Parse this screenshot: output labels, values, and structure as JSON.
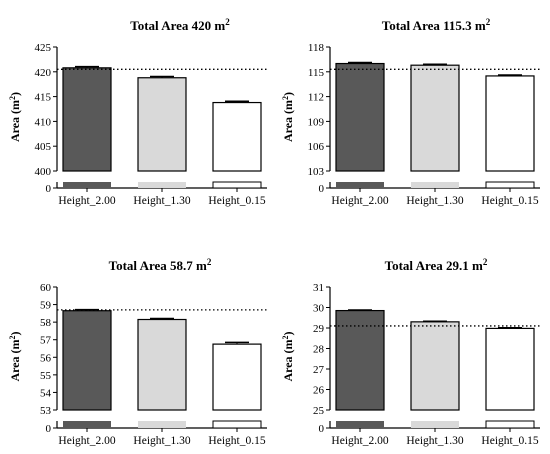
{
  "chart_data": [
    {
      "type": "bar",
      "title_main": "Total Area 420 m",
      "title_sup": "2",
      "ylabel_main": "Area (m",
      "ylabel_sup": "2",
      "ylabel_end": ")",
      "categories": [
        "Height_2.00",
        "Height_1.30",
        "Height_0.15"
      ],
      "values": [
        420.8,
        418.8,
        413.8
      ],
      "errors": [
        0.25,
        0.25,
        0.25
      ],
      "ylim": [
        400,
        425
      ],
      "yticks": [
        400,
        405,
        410,
        415,
        420,
        425
      ],
      "axis_break_tick": 0,
      "reference_line": 420.5,
      "bar_colors": [
        "#595959",
        "#d9d9d9",
        "#ffffff"
      ]
    },
    {
      "type": "bar",
      "title_main": "Total Area 115.3 m",
      "title_sup": "2",
      "ylabel_main": "Area (m",
      "ylabel_sup": "2",
      "ylabel_end": ")",
      "categories": [
        "Height_2.00",
        "Height_1.30",
        "Height_0.15"
      ],
      "values": [
        116.0,
        115.8,
        114.5
      ],
      "errors": [
        0.12,
        0.12,
        0.12
      ],
      "ylim": [
        103,
        118
      ],
      "yticks": [
        103,
        106,
        109,
        112,
        115,
        118
      ],
      "axis_break_tick": 0,
      "reference_line": 115.3,
      "bar_colors": [
        "#595959",
        "#d9d9d9",
        "#ffffff"
      ]
    },
    {
      "type": "bar",
      "title_main": "Total Area 58.7 m",
      "title_sup": "2",
      "ylabel_main": "Area (m",
      "ylabel_sup": "2",
      "ylabel_end": ")",
      "categories": [
        "Height_2.00",
        "Height_1.30",
        "Height_0.15"
      ],
      "values": [
        58.65,
        58.15,
        56.75
      ],
      "errors": [
        0.06,
        0.06,
        0.1
      ],
      "ylim": [
        53,
        60
      ],
      "yticks": [
        53,
        54,
        55,
        56,
        57,
        58,
        59,
        60
      ],
      "axis_break_tick": 0,
      "reference_line": 58.7,
      "bar_colors": [
        "#595959",
        "#d9d9d9",
        "#ffffff"
      ]
    },
    {
      "type": "bar",
      "title_main": "Total Area 29.1 m",
      "title_sup": "2",
      "ylabel_main": "Area (m",
      "ylabel_sup": "2",
      "ylabel_end": ")",
      "categories": [
        "Height_2.00",
        "Height_1.30",
        "Height_0.15"
      ],
      "values": [
        29.85,
        29.3,
        28.98
      ],
      "errors": [
        0.03,
        0.03,
        0.03
      ],
      "ylim": [
        25,
        31
      ],
      "yticks": [
        25,
        26,
        27,
        28,
        29,
        30,
        31
      ],
      "axis_break_tick": 0,
      "reference_line": 29.1,
      "bar_colors": [
        "#595959",
        "#d9d9d9",
        "#ffffff"
      ]
    }
  ]
}
